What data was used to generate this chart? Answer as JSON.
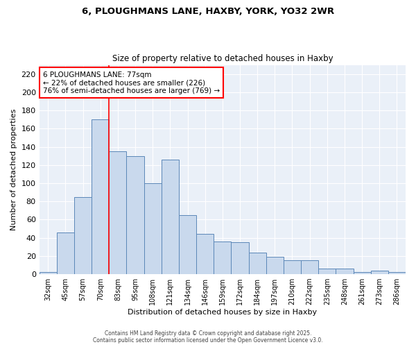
{
  "title1": "6, PLOUGHMANS LANE, HAXBY, YORK, YO32 2WR",
  "title2": "Size of property relative to detached houses in Haxby",
  "xlabel": "Distribution of detached houses by size in Haxby",
  "ylabel": "Number of detached properties",
  "categories": [
    "32sqm",
    "45sqm",
    "57sqm",
    "70sqm",
    "83sqm",
    "95sqm",
    "108sqm",
    "121sqm",
    "134sqm",
    "146sqm",
    "159sqm",
    "172sqm",
    "184sqm",
    "197sqm",
    "210sqm",
    "222sqm",
    "235sqm",
    "248sqm",
    "261sqm",
    "273sqm",
    "286sqm"
  ],
  "values": [
    2,
    46,
    85,
    170,
    135,
    130,
    100,
    126,
    65,
    44,
    36,
    35,
    24,
    19,
    15,
    15,
    6,
    6,
    2,
    4,
    2
  ],
  "bar_color": "#c9d9ed",
  "bar_edge_color": "#5b87b8",
  "red_line_index": 3,
  "annotation_text": "6 PLOUGHMANS LANE: 77sqm\n← 22% of detached houses are smaller (226)\n76% of semi-detached houses are larger (769) →",
  "annotation_box_color": "white",
  "annotation_box_edge": "red",
  "ylim": [
    0,
    230
  ],
  "yticks": [
    0,
    20,
    40,
    60,
    80,
    100,
    120,
    140,
    160,
    180,
    200,
    220
  ],
  "bg_color": "#eaf0f8",
  "footer1": "Contains HM Land Registry data © Crown copyright and database right 2025.",
  "footer2": "Contains public sector information licensed under the Open Government Licence v3.0."
}
